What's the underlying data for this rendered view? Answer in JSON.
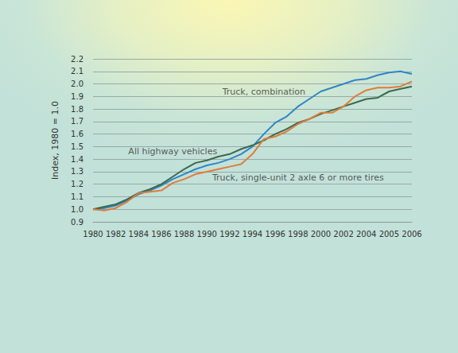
{
  "chart_data": {
    "type": "line",
    "y_label": "Index, 1980 = 1.0",
    "categories": [
      "1980",
      null,
      "1982",
      null,
      "1984",
      null,
      "1986",
      null,
      "1988",
      null,
      "1990",
      null,
      "1992",
      null,
      "1994",
      null,
      "1996",
      null,
      "1998",
      null,
      "2000",
      null,
      "2002",
      null,
      "2004",
      null,
      "2005",
      null,
      "2006"
    ],
    "series": [
      {
        "name": "Truck, combination",
        "color": "#2f86c6",
        "values": [
          1.0,
          1.01,
          1.03,
          1.07,
          1.12,
          1.15,
          1.19,
          1.24,
          1.28,
          1.32,
          1.35,
          1.37,
          1.4,
          1.44,
          1.5,
          1.6,
          1.69,
          1.74,
          1.82,
          1.88,
          1.94,
          1.97,
          2.0,
          2.03,
          2.04,
          2.07,
          2.09,
          2.1,
          2.08
        ]
      },
      {
        "name": "All highway vehicles",
        "color": "#3b6a4c",
        "values": [
          1.0,
          1.02,
          1.04,
          1.08,
          1.13,
          1.16,
          1.2,
          1.26,
          1.32,
          1.37,
          1.39,
          1.42,
          1.44,
          1.48,
          1.51,
          1.55,
          1.6,
          1.64,
          1.69,
          1.72,
          1.76,
          1.79,
          1.82,
          1.85,
          1.88,
          1.89,
          1.94,
          1.96,
          1.98
        ]
      },
      {
        "name": "Truck, single-unit 2 axle 6 or more tires",
        "color": "#e07c3a",
        "values": [
          1.0,
          0.99,
          1.01,
          1.06,
          1.13,
          1.14,
          1.15,
          1.21,
          1.24,
          1.28,
          1.3,
          1.32,
          1.34,
          1.36,
          1.44,
          1.56,
          1.58,
          1.62,
          1.68,
          1.72,
          1.77,
          1.77,
          1.82,
          1.9,
          1.95,
          1.97,
          1.97,
          1.98,
          2.02
        ]
      }
    ],
    "annotations": [
      {
        "text": "Truck, combination",
        "x": 15,
        "y": 1.94
      },
      {
        "text": "All highway vehicles",
        "x": 7,
        "y": 1.46
      },
      {
        "text": "Truck, single-unit 2 axle 6 or more tires",
        "x": 17.5,
        "y": 1.25
      }
    ],
    "ylim": [
      0.9,
      2.2
    ],
    "yticks": [
      0.9,
      {
        "value": 1.0,
        "label": "1.0"
      },
      1.1,
      1.2,
      1.3,
      1.4,
      1.5,
      1.6,
      1.7,
      1.8,
      1.9,
      {
        "value": 2.0,
        "label": "2.0"
      },
      2.1,
      2.2
    ],
    "grid": true
  }
}
